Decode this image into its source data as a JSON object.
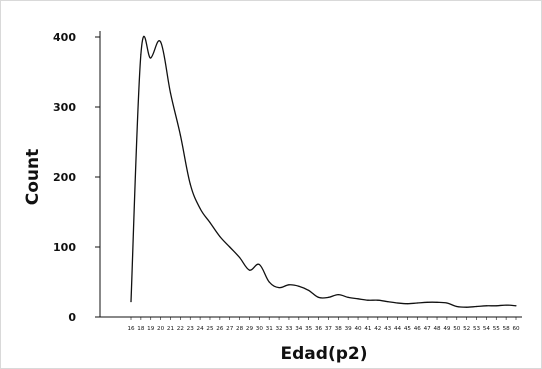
{
  "chart_data": {
    "type": "line",
    "xlabel": "Edad(p2)",
    "ylabel": "Count",
    "ylim": [
      0,
      400
    ],
    "yticks": [
      0,
      100,
      200,
      300,
      400
    ],
    "grid": false,
    "x": [
      16,
      18,
      19,
      20,
      21,
      22,
      23,
      24,
      25,
      26,
      27,
      28,
      29,
      30,
      31,
      32,
      33,
      34,
      35,
      36,
      37,
      38,
      39,
      40,
      41,
      42,
      43,
      44,
      45,
      46,
      47,
      48,
      49,
      50,
      52,
      53,
      54,
      55,
      58,
      60
    ],
    "x_tick_labels": [
      "16",
      "18",
      "19",
      "20",
      "21",
      "22",
      "23",
      "24",
      "25",
      "26",
      "27",
      "28",
      "29",
      "30",
      "31",
      "32",
      "33",
      "34",
      "35",
      "36",
      "37",
      "38",
      "39",
      "40",
      "41",
      "42",
      "43",
      "44",
      "45",
      "46",
      "47",
      "48",
      "49",
      "50",
      "52",
      "53",
      "54",
      "55",
      "58",
      "60"
    ],
    "series": [
      {
        "color": "#111111",
        "values": [
          22,
          375,
          370,
          393,
          320,
          260,
          190,
          155,
          135,
          115,
          100,
          85,
          67,
          75,
          50,
          42,
          46,
          44,
          38,
          28,
          28,
          32,
          28,
          26,
          24,
          24,
          22,
          20,
          19,
          20,
          21,
          21,
          20,
          15,
          14,
          15,
          16,
          16,
          17,
          16
        ]
      }
    ]
  }
}
